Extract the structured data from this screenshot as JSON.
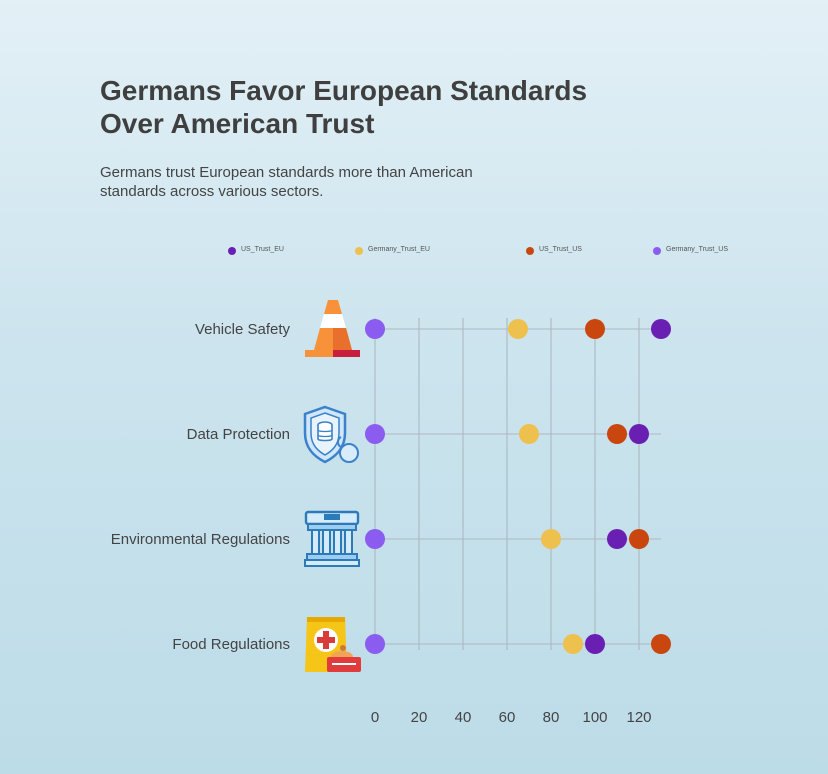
{
  "title_lines": [
    "Germans Favor European Standards",
    "Over American Trust"
  ],
  "subtitle_lines": [
    "Germans trust European standards more than American",
    "standards across various sectors."
  ],
  "colors": {
    "US_Trust_EU": "#6a1fb3",
    "Germany_Trust_EU": "#eec04e",
    "US_Trust_US": "#c9470f",
    "Germany_Trust_US": "#8b5cf0"
  },
  "chart_data": {
    "type": "scatter",
    "title": "Germans Favor European Standards Over American Trust",
    "subtitle": "Germans trust European standards more than American standards across various sectors.",
    "categories": [
      "Vehicle Safety",
      "Data Protection",
      "Environmental Regulations",
      "Food Regulations"
    ],
    "category_icons": [
      "traffic-cone-icon",
      "shield-data-icon",
      "government-building-icon",
      "food-package-icon"
    ],
    "x_ticks": [
      0,
      20,
      40,
      60,
      80,
      100,
      120
    ],
    "xlim": [
      0,
      130
    ],
    "grid": true,
    "legend_position": "top",
    "series": [
      {
        "name": "US_Trust_EU",
        "values": [
          130,
          120,
          110,
          100
        ]
      },
      {
        "name": "Germany_Trust_EU",
        "values": [
          65,
          70,
          80,
          90
        ]
      },
      {
        "name": "US_Trust_US",
        "values": [
          100,
          110,
          120,
          130
        ]
      },
      {
        "name": "Germany_Trust_US",
        "values": [
          0,
          0,
          0,
          0
        ]
      }
    ]
  }
}
